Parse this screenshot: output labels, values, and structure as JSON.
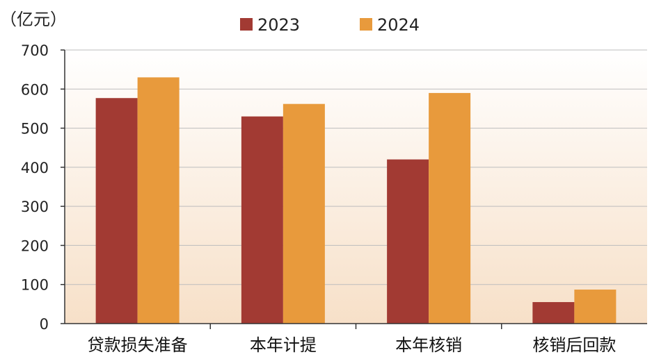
{
  "chart_data": {
    "type": "bar",
    "unit_label": "（亿元）",
    "categories": [
      "贷款损失准备",
      "本年计提",
      "本年核销",
      "核销后回款"
    ],
    "series": [
      {
        "name": "2023",
        "color": "#a23a33",
        "values": [
          577,
          530,
          420,
          55
        ]
      },
      {
        "name": "2024",
        "color": "#e89a3c",
        "values": [
          630,
          562,
          590,
          87
        ]
      }
    ],
    "yticks": [
      "0",
      "100",
      "200",
      "300",
      "400",
      "500",
      "600",
      "700"
    ],
    "ylim": [
      0,
      700
    ],
    "grid": true,
    "legend": "top-center",
    "background_gradient": [
      "#f7e0c8",
      "#ffffff"
    ]
  }
}
